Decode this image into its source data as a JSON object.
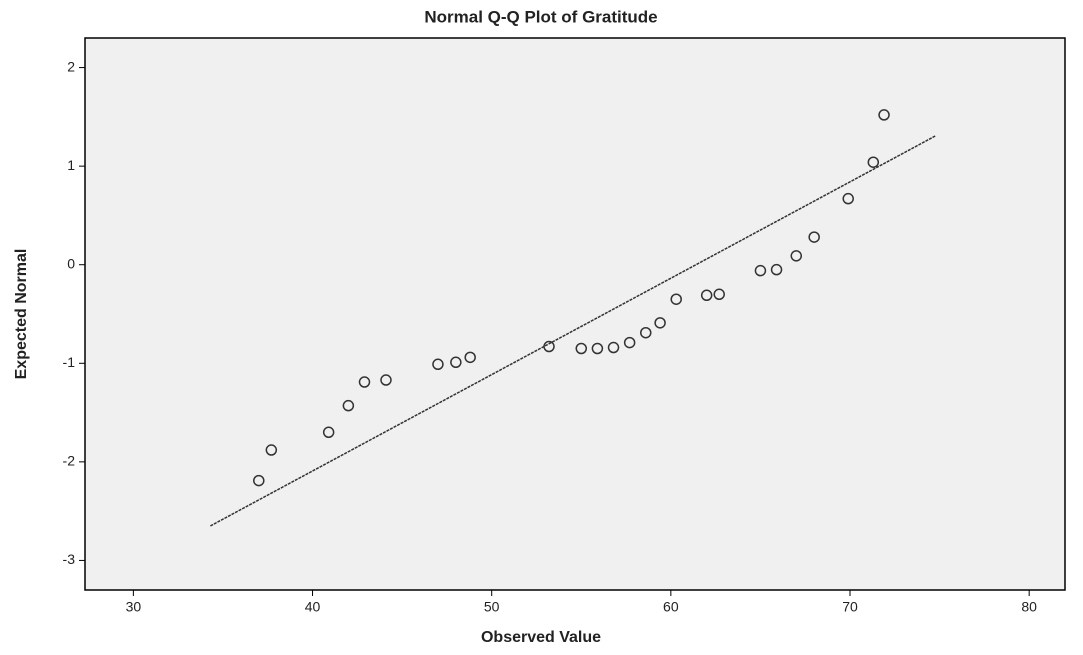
{
  "chart_data": {
    "type": "scatter",
    "title": "Normal Q-Q Plot of Gratitude",
    "x_label": "Observed Value",
    "y_label": "Expected Normal",
    "xlim": [
      27.3,
      82
    ],
    "xticks": [
      30,
      40,
      50,
      60,
      70,
      80
    ],
    "ylim": [
      -3.3,
      2.3
    ],
    "yticks": [
      2,
      1,
      0,
      -1,
      -2,
      -3
    ],
    "series": [
      {
        "color": "#333333",
        "x": [
          37.0,
          37.7,
          40.9,
          42.0,
          42.9,
          44.1,
          47.0,
          48.0,
          48.8,
          53.2,
          55.0,
          55.9,
          56.8,
          57.7,
          58.6,
          59.4,
          60.3,
          62.0,
          62.7,
          65.0,
          65.9,
          67.0,
          68.0,
          69.9,
          71.3,
          71.9
        ],
        "values": [
          -2.19,
          -1.88,
          -1.7,
          -1.43,
          -1.19,
          -1.17,
          -1.01,
          -0.99,
          -0.94,
          -0.83,
          -0.85,
          -0.85,
          -0.84,
          -0.79,
          -0.69,
          -0.59,
          -0.35,
          -0.31,
          -0.3,
          -0.06,
          -0.05,
          0.09,
          0.28,
          0.67,
          1.04,
          1.52
        ]
      }
    ],
    "reference_line": {
      "color": "#333333",
      "x": [
        34.3,
        74.8
      ],
      "values": [
        -2.65,
        1.31
      ]
    },
    "background": "#f0f0f0"
  }
}
